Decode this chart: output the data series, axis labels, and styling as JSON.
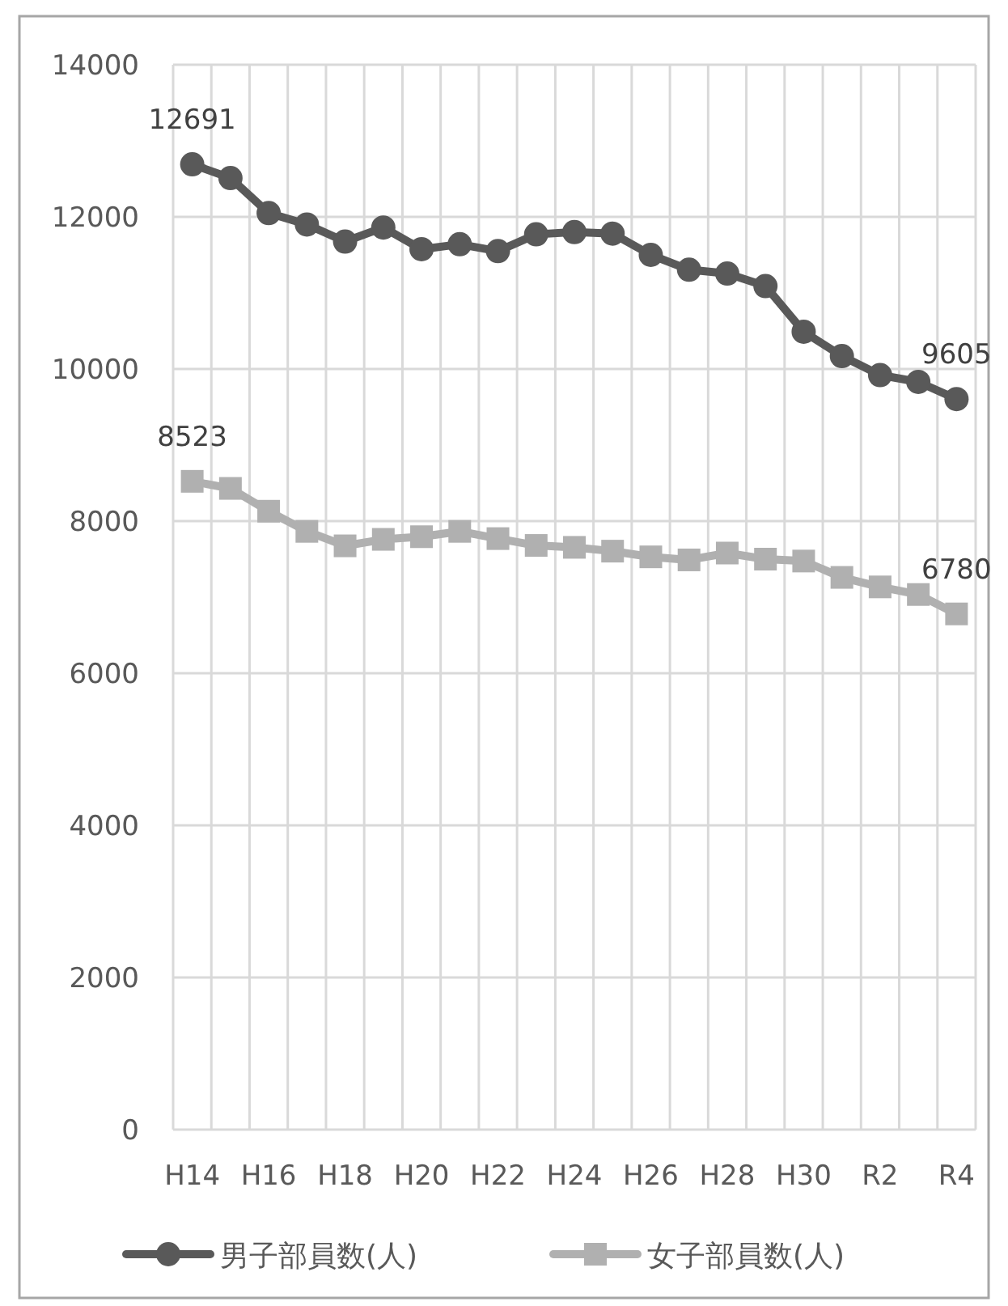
{
  "chart_data": {
    "type": "line",
    "categories": [
      "H14",
      null,
      "H16",
      null,
      "H18",
      null,
      "H20",
      null,
      "H22",
      null,
      "H24",
      null,
      "H26",
      null,
      "H28",
      null,
      "H30",
      null,
      "R2",
      null,
      "R4"
    ],
    "series": [
      {
        "name": "男子部員数(人)",
        "color": "#595959",
        "marker": "circle",
        "values": [
          12691,
          12510,
          12050,
          11900,
          11675,
          11860,
          11575,
          11640,
          11550,
          11770,
          11800,
          11780,
          11500,
          11305,
          11255,
          11090,
          10490,
          10170,
          9920,
          9830,
          9605
        ],
        "value_labels": [
          "12691",
          null,
          null,
          null,
          null,
          null,
          null,
          null,
          null,
          null,
          null,
          null,
          null,
          null,
          null,
          null,
          null,
          null,
          null,
          null,
          "9605"
        ]
      },
      {
        "name": "女子部員数(人)",
        "color": "#b0b0b0",
        "marker": "square",
        "values": [
          8523,
          8430,
          8130,
          7865,
          7675,
          7760,
          7795,
          7865,
          7770,
          7680,
          7655,
          7605,
          7530,
          7490,
          7580,
          7500,
          7475,
          7260,
          7135,
          7035,
          6780
        ],
        "value_labels": [
          "8523",
          null,
          null,
          null,
          null,
          null,
          null,
          null,
          null,
          null,
          null,
          null,
          null,
          null,
          null,
          null,
          null,
          null,
          null,
          null,
          "6780"
        ]
      }
    ],
    "ylim": [
      0,
      14000
    ],
    "yticks": [
      0,
      2000,
      4000,
      6000,
      8000,
      10000,
      12000,
      14000
    ],
    "grid": true,
    "legend": "bottom",
    "line_style": "solid"
  }
}
